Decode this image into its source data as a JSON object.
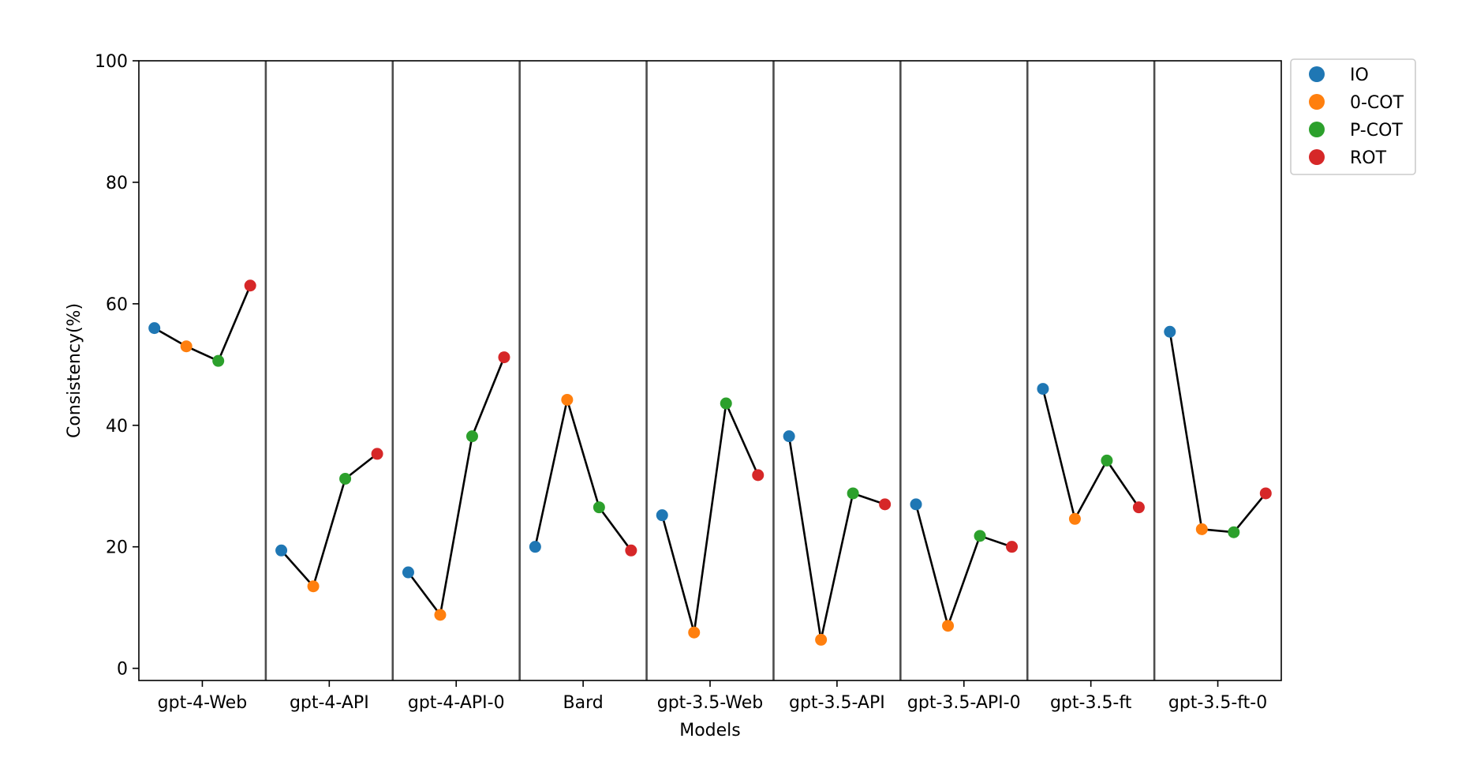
{
  "chart_data": {
    "type": "line",
    "categories": [
      "gpt-4-Web",
      "gpt-4-API",
      "gpt-4-API-0",
      "Bard",
      "gpt-3.5-Web",
      "gpt-3.5-API",
      "gpt-3.5-API-0",
      "gpt-3.5-ft",
      "gpt-3.5-ft-0"
    ],
    "series": [
      {
        "name": "IO",
        "color": "#1f77b4",
        "values": [
          56,
          19.4,
          15.8,
          20,
          25.2,
          38.2,
          27,
          46,
          55.4
        ]
      },
      {
        "name": "0-COT",
        "color": "#ff7f0e",
        "values": [
          53,
          13.5,
          8.8,
          44.2,
          5.9,
          4.7,
          7,
          24.6,
          22.9
        ]
      },
      {
        "name": "P-COT",
        "color": "#2ca02c",
        "values": [
          50.6,
          31.2,
          38.2,
          26.5,
          43.6,
          28.8,
          21.8,
          34.2,
          22.4
        ]
      },
      {
        "name": "ROT",
        "color": "#d62728",
        "values": [
          63,
          35.3,
          51.2,
          19.4,
          31.8,
          27,
          20,
          26.5,
          28.8
        ]
      }
    ],
    "xlabel": "Models",
    "ylabel": "Consistency(%)",
    "ylim": [
      -2,
      100
    ],
    "yticks": [
      "0",
      "20",
      "40",
      "60",
      "80",
      "100"
    ],
    "legend_position": "outside top-right",
    "grid": false
  }
}
